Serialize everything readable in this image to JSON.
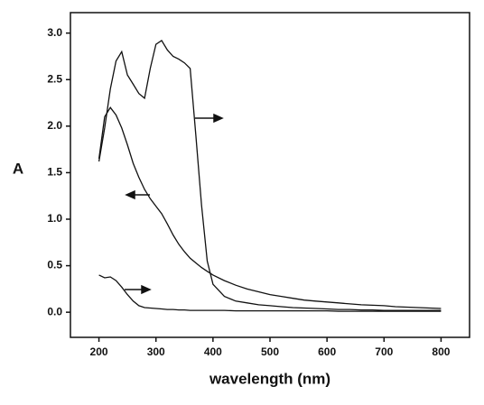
{
  "chart_data": {
    "type": "line",
    "x_label": "wavelength (nm)",
    "y_label": "A",
    "x": [
      200,
      210,
      220,
      230,
      240,
      250,
      260,
      270,
      280,
      290,
      300,
      310,
      320,
      330,
      340,
      350,
      360,
      370,
      380,
      390,
      400,
      420,
      440,
      460,
      480,
      500,
      520,
      540,
      560,
      580,
      600,
      620,
      640,
      660,
      680,
      700,
      720,
      740,
      760,
      780,
      800
    ],
    "series": [
      {
        "color": "#111",
        "values": [
          1.62,
          1.98,
          2.4,
          2.7,
          2.8,
          2.55,
          2.45,
          2.35,
          2.3,
          2.62,
          2.88,
          2.92,
          2.82,
          2.75,
          2.72,
          2.68,
          2.62,
          1.9,
          1.15,
          0.55,
          0.3,
          0.17,
          0.12,
          0.1,
          0.08,
          0.07,
          0.06,
          0.05,
          0.045,
          0.04,
          0.035,
          0.03,
          0.03,
          0.025,
          0.025,
          0.02,
          0.02,
          0.02,
          0.02,
          0.02,
          0.02
        ]
      },
      {
        "color": "#111",
        "values": [
          1.65,
          2.1,
          2.2,
          2.12,
          1.98,
          1.8,
          1.6,
          1.45,
          1.32,
          1.22,
          1.14,
          1.06,
          0.95,
          0.83,
          0.73,
          0.65,
          0.58,
          0.53,
          0.48,
          0.44,
          0.4,
          0.34,
          0.29,
          0.25,
          0.22,
          0.19,
          0.17,
          0.15,
          0.13,
          0.12,
          0.11,
          0.1,
          0.09,
          0.08,
          0.075,
          0.07,
          0.06,
          0.055,
          0.05,
          0.045,
          0.04
        ]
      },
      {
        "color": "#111",
        "values": [
          0.4,
          0.37,
          0.38,
          0.34,
          0.27,
          0.19,
          0.12,
          0.07,
          0.05,
          0.045,
          0.04,
          0.035,
          0.03,
          0.03,
          0.025,
          0.025,
          0.02,
          0.02,
          0.02,
          0.02,
          0.02,
          0.02,
          0.015,
          0.015,
          0.015,
          0.015,
          0.015,
          0.015,
          0.015,
          0.015,
          0.015,
          0.01,
          0.01,
          0.01,
          0.01,
          0.01,
          0.01,
          0.01,
          0.01,
          0.01,
          0.01
        ]
      }
    ],
    "xlim": [
      150,
      850
    ],
    "xticks": [
      200,
      300,
      400,
      500,
      600,
      700,
      800
    ],
    "ylim": [
      -0.27,
      3.22
    ],
    "yticks": [
      {
        "value": 0,
        "label": "0.0"
      },
      0.5,
      {
        "value": 1,
        "label": "1.0"
      },
      1.5,
      {
        "value": 2,
        "label": "2.0"
      },
      2.5,
      {
        "value": 3,
        "label": "3.0"
      }
    ]
  }
}
